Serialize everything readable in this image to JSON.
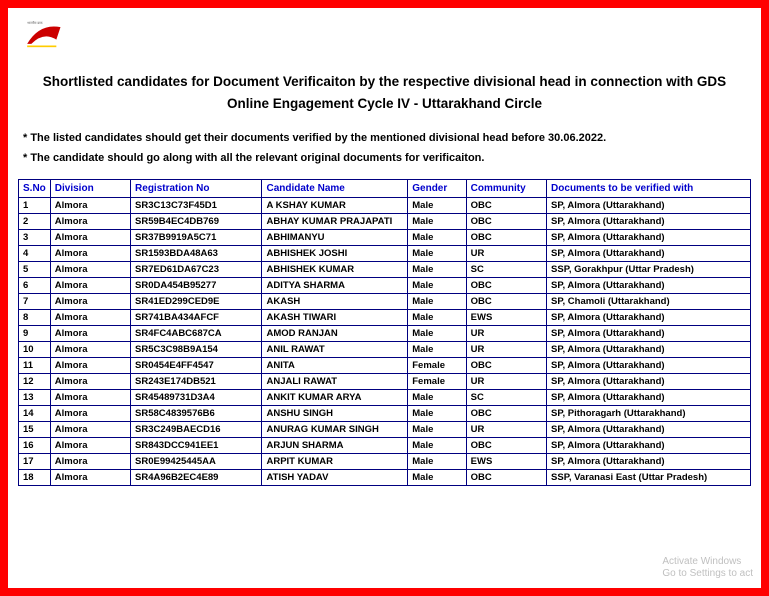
{
  "logo": {
    "label": "India Post",
    "arc_color": "#cc0000"
  },
  "title": "Shortlisted candidates for Document Verificaiton by the respective divisional head in connection with GDS Online Engagement Cycle IV - Uttarakhand Circle",
  "notes": [
    "* The listed candidates should get their documents verified by the mentioned divisional head before 30.06.2022.",
    "* The candidate should go along with all the relevant original documents for verificaiton."
  ],
  "headers": {
    "sno": "S.No",
    "division": "Division",
    "regno": "Registration No",
    "name": "Candidate Name",
    "gender": "Gender",
    "community": "Community",
    "docwith": "Documents to be verified with"
  },
  "rows": [
    {
      "sno": "1",
      "division": "Almora",
      "regno": "SR3C13C73F45D1",
      "name": "A KSHAY KUMAR",
      "gender": "Male",
      "community": "OBC",
      "docwith": "SP, Almora (Uttarakhand)"
    },
    {
      "sno": "2",
      "division": "Almora",
      "regno": "SR59B4EC4DB769",
      "name": "ABHAY KUMAR PRAJAPATI",
      "gender": "Male",
      "community": "OBC",
      "docwith": "SP, Almora (Uttarakhand)"
    },
    {
      "sno": "3",
      "division": "Almora",
      "regno": "SR37B9919A5C71",
      "name": "ABHIMANYU",
      "gender": "Male",
      "community": "OBC",
      "docwith": "SP, Almora (Uttarakhand)"
    },
    {
      "sno": "4",
      "division": "Almora",
      "regno": "SR1593BDA48A63",
      "name": "ABHISHEK JOSHI",
      "gender": "Male",
      "community": "UR",
      "docwith": "SP, Almora (Uttarakhand)"
    },
    {
      "sno": "5",
      "division": "Almora",
      "regno": "SR7ED61DA67C23",
      "name": "ABHISHEK KUMAR",
      "gender": "Male",
      "community": "SC",
      "docwith": "SSP, Gorakhpur (Uttar Pradesh)"
    },
    {
      "sno": "6",
      "division": "Almora",
      "regno": "SR0DA454B95277",
      "name": "ADITYA SHARMA",
      "gender": "Male",
      "community": "OBC",
      "docwith": "SP, Almora (Uttarakhand)"
    },
    {
      "sno": "7",
      "division": "Almora",
      "regno": "SR41ED299CED9E",
      "name": "AKASH",
      "gender": "Male",
      "community": "OBC",
      "docwith": "SP, Chamoli (Uttarakhand)"
    },
    {
      "sno": "8",
      "division": "Almora",
      "regno": "SR741BA434AFCF",
      "name": "AKASH TIWARI",
      "gender": "Male",
      "community": "EWS",
      "docwith": "SP, Almora (Uttarakhand)"
    },
    {
      "sno": "9",
      "division": "Almora",
      "regno": "SR4FC4ABC687CA",
      "name": "AMOD RANJAN",
      "gender": "Male",
      "community": "UR",
      "docwith": "SP, Almora (Uttarakhand)"
    },
    {
      "sno": "10",
      "division": "Almora",
      "regno": "SR5C3C98B9A154",
      "name": "ANIL RAWAT",
      "gender": "Male",
      "community": "UR",
      "docwith": "SP, Almora (Uttarakhand)"
    },
    {
      "sno": "11",
      "division": "Almora",
      "regno": "SR0454E4FF4547",
      "name": "ANITA",
      "gender": "Female",
      "community": "OBC",
      "docwith": "SP, Almora (Uttarakhand)"
    },
    {
      "sno": "12",
      "division": "Almora",
      "regno": "SR243E174DB521",
      "name": "ANJALI RAWAT",
      "gender": "Female",
      "community": "UR",
      "docwith": "SP, Almora (Uttarakhand)"
    },
    {
      "sno": "13",
      "division": "Almora",
      "regno": "SR45489731D3A4",
      "name": "ANKIT KUMAR ARYA",
      "gender": "Male",
      "community": "SC",
      "docwith": "SP, Almora (Uttarakhand)"
    },
    {
      "sno": "14",
      "division": "Almora",
      "regno": "SR58C4839576B6",
      "name": "ANSHU SINGH",
      "gender": "Male",
      "community": "OBC",
      "docwith": "SP, Pithoragarh (Uttarakhand)"
    },
    {
      "sno": "15",
      "division": "Almora",
      "regno": "SR3C249BAECD16",
      "name": "ANURAG KUMAR SINGH",
      "gender": "Male",
      "community": "UR",
      "docwith": "SP, Almora (Uttarakhand)"
    },
    {
      "sno": "16",
      "division": "Almora",
      "regno": "SR843DCC941EE1",
      "name": "ARJUN SHARMA",
      "gender": "Male",
      "community": "OBC",
      "docwith": "SP, Almora (Uttarakhand)"
    },
    {
      "sno": "17",
      "division": "Almora",
      "regno": "SR0E99425445AA",
      "name": "ARPIT KUMAR",
      "gender": "Male",
      "community": "EWS",
      "docwith": "SP, Almora (Uttarakhand)"
    },
    {
      "sno": "18",
      "division": "Almora",
      "regno": "SR4A96B2EC4E89",
      "name": "ATISH YADAV",
      "gender": "Male",
      "community": "OBC",
      "docwith": "SSP, Varanasi East (Uttar Pradesh)"
    }
  ],
  "activate_windows": {
    "line1": "Activate Windows",
    "line2": "Go to Settings to act"
  }
}
